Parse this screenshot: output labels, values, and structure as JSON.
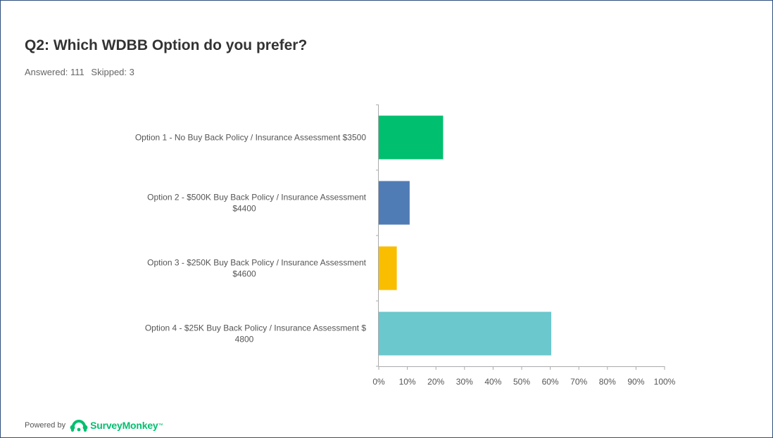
{
  "header": {
    "title": "Q2: Which WDBB Option do you prefer?",
    "answered": "Answered: 111",
    "skipped": "Skipped: 3"
  },
  "footer": {
    "powered_by": "Powered by",
    "brand": "SurveyMonkey",
    "trademark": "™",
    "logo_icon": "surveymonkey-logo-icon"
  },
  "chart_data": {
    "type": "bar",
    "orientation": "horizontal",
    "categories": [
      [
        "Option 1 - No Buy Back Policy / Insurance Assessment $3500"
      ],
      [
        "Option 2 - $500K Buy Back Policy / Insurance Assessment",
        "$4400"
      ],
      [
        "Option 3 - $250K Buy Back Policy / Insurance Assessment",
        "$4600"
      ],
      [
        "Option 4 - $25K Buy Back Policy / Insurance Assessment $",
        "4800"
      ]
    ],
    "values": [
      22.52,
      10.81,
      6.31,
      60.36
    ],
    "colors": [
      "#00bf6f",
      "#507cb6",
      "#f9be00",
      "#6bc8cd"
    ],
    "xlim": [
      0,
      100
    ],
    "xticks": [
      "0%",
      "10%",
      "20%",
      "30%",
      "40%",
      "50%",
      "60%",
      "70%",
      "80%",
      "90%",
      "100%"
    ],
    "grid": false,
    "legend": "none"
  }
}
